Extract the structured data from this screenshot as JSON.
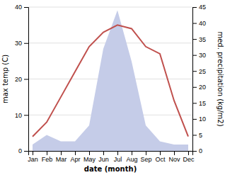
{
  "chart_data": {
    "type": "line",
    "categories": [
      "Jan",
      "Feb",
      "Mar",
      "Apr",
      "May",
      "Jun",
      "Jul",
      "Aug",
      "Sep",
      "Oct",
      "Nov",
      "Dec"
    ],
    "xlabel": "date (month)",
    "ylabel": "max temp (C)",
    "y2label": "med. precipitation (kg/m2)",
    "series": [
      {
        "type": "area",
        "axis": "y2",
        "color": "#c5cce8",
        "values": [
          2,
          5,
          3,
          3,
          8,
          32,
          44,
          28,
          8,
          3,
          2,
          2
        ]
      },
      {
        "type": "line",
        "color": "#c0504d",
        "values": [
          4,
          8,
          15,
          22,
          29,
          33,
          35,
          34,
          29,
          27,
          14,
          4
        ]
      }
    ],
    "ylim": [
      0,
      40
    ],
    "yticks": [
      0,
      10,
      20,
      30,
      40
    ],
    "y2lim": [
      0,
      45
    ],
    "y2ticks": [
      0,
      5,
      10,
      15,
      20,
      25,
      30,
      35,
      40,
      45
    ],
    "grid": true
  }
}
